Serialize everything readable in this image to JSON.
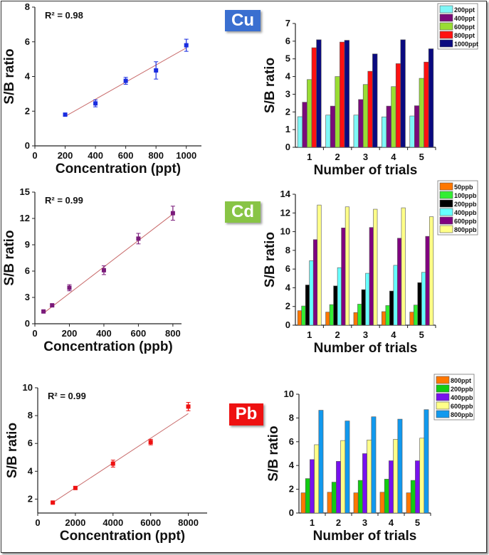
{
  "badges": {
    "cu": "Cu",
    "cd": "Cd",
    "pb": "Pb"
  },
  "chart_data": [
    {
      "id": "cu-linear",
      "type": "scatter",
      "element": "Cu",
      "xlabel": "Concentration (ppt)",
      "ylabel": "S/B ratio",
      "annotation": "R² = 0.98",
      "xlim": [
        0,
        1100
      ],
      "ylim": [
        0,
        8
      ],
      "xticks": [
        0,
        200,
        400,
        600,
        800,
        1000
      ],
      "yticks": [
        0,
        2,
        4,
        6,
        8
      ],
      "x": [
        200,
        400,
        600,
        800,
        1000
      ],
      "y": [
        1.8,
        2.45,
        3.75,
        4.35,
        5.8
      ],
      "error": [
        0.05,
        0.2,
        0.2,
        0.5,
        0.35
      ],
      "fit": {
        "x": [
          200,
          1000
        ],
        "y": [
          1.7,
          5.65
        ]
      },
      "color": "#1a2de0",
      "fit_color": "#c86a6a"
    },
    {
      "id": "cu-bars",
      "type": "bar",
      "element": "Cu",
      "xlabel": "Number of trials",
      "ylabel": "S/B ratio",
      "categories": [
        "1",
        "2",
        "3",
        "4",
        "5"
      ],
      "ylim": [
        0,
        7
      ],
      "yticks": [
        0,
        1,
        2,
        3,
        4,
        5,
        6,
        7
      ],
      "legend_position": "top-right",
      "series": [
        {
          "name": "200ppt",
          "color": "#7ff7f7",
          "values": [
            1.73,
            1.82,
            1.82,
            1.72,
            1.77
          ]
        },
        {
          "name": "400ppt",
          "color": "#7a0a7a",
          "values": [
            2.55,
            2.33,
            2.7,
            2.33,
            2.35
          ]
        },
        {
          "name": "600ppt",
          "color": "#99dd33",
          "values": [
            3.83,
            4.0,
            3.55,
            3.43,
            3.9
          ]
        },
        {
          "name": "800ppt",
          "color": "#ff1111",
          "values": [
            5.63,
            5.95,
            4.3,
            4.73,
            4.82
          ]
        },
        {
          "name": "1000ppt",
          "color": "#0a0a80",
          "values": [
            6.08,
            6.05,
            5.28,
            6.08,
            5.57
          ]
        }
      ]
    },
    {
      "id": "cd-linear",
      "type": "scatter",
      "element": "Cd",
      "xlabel": "Concentration (ppb)",
      "ylabel": "S/B ratio",
      "annotation": "R² = 0.99",
      "xlim": [
        0,
        850
      ],
      "ylim": [
        0,
        15
      ],
      "xticks": [
        0,
        200,
        400,
        600,
        800
      ],
      "yticks": [
        0,
        3,
        6,
        9,
        12,
        15
      ],
      "x": [
        50,
        100,
        200,
        400,
        600,
        800
      ],
      "y": [
        1.4,
        2.1,
        4.1,
        6.1,
        9.7,
        12.6
      ],
      "error": [
        0.1,
        0.15,
        0.35,
        0.5,
        0.6,
        0.8
      ],
      "fit": {
        "x": [
          50,
          800
        ],
        "y": [
          1.2,
          12.5
        ]
      },
      "color": "#7a1a7a",
      "fit_color": "#c86a6a"
    },
    {
      "id": "cd-bars",
      "type": "bar",
      "element": "Cd",
      "xlabel": "Number of trials",
      "ylabel": "S/B ratio",
      "categories": [
        "1",
        "2",
        "3",
        "4",
        "5"
      ],
      "ylim": [
        0,
        14
      ],
      "yticks": [
        0,
        2,
        4,
        6,
        8,
        10,
        12,
        14
      ],
      "legend_position": "top-right",
      "series": [
        {
          "name": "50ppb",
          "color": "#ff7700",
          "values": [
            1.55,
            1.4,
            1.35,
            1.45,
            1.4
          ]
        },
        {
          "name": "100ppb",
          "color": "#33ee33",
          "values": [
            2.05,
            2.2,
            2.25,
            2.1,
            2.15
          ]
        },
        {
          "name": "200ppb",
          "color": "#000000",
          "values": [
            4.3,
            4.2,
            3.8,
            3.65,
            4.55
          ]
        },
        {
          "name": "400ppb",
          "color": "#66ffff",
          "values": [
            6.9,
            6.15,
            5.55,
            6.4,
            5.65
          ]
        },
        {
          "name": "600ppb",
          "color": "#800080",
          "values": [
            9.15,
            10.4,
            10.45,
            9.3,
            9.5
          ]
        },
        {
          "name": "800ppb",
          "color": "#ffff88",
          "values": [
            12.85,
            12.65,
            12.4,
            12.55,
            11.6
          ]
        }
      ]
    },
    {
      "id": "pb-linear",
      "type": "scatter",
      "element": "Pb",
      "xlabel": "Concentration (ppt)",
      "ylabel": "S/B ratio",
      "annotation": "R² = 0.99",
      "xlim": [
        0,
        9000
      ],
      "ylim": [
        1,
        10
      ],
      "xticks": [
        0,
        2000,
        4000,
        6000,
        8000
      ],
      "yticks": [
        2,
        4,
        6,
        8,
        10
      ],
      "x": [
        800,
        2000,
        4000,
        6000,
        8000
      ],
      "y": [
        1.75,
        2.8,
        4.55,
        6.1,
        8.65
      ],
      "error": [
        0.05,
        0.1,
        0.25,
        0.2,
        0.3
      ],
      "fit": {
        "x": [
          800,
          8000
        ],
        "y": [
          1.75,
          8.15
        ]
      },
      "color": "#ee1111",
      "fit_color": "#c86a6a"
    },
    {
      "id": "pb-bars",
      "type": "bar",
      "element": "Pb",
      "xlabel": "Number of trials",
      "ylabel": "S/B ratio",
      "categories": [
        "1",
        "2",
        "3",
        "4",
        "5"
      ],
      "ylim": [
        0,
        10
      ],
      "yticks": [
        0,
        2,
        4,
        6,
        8,
        10
      ],
      "legend_position": "top-right",
      "series": [
        {
          "name": "800ppt",
          "color": "#ff7700",
          "values": [
            1.7,
            1.75,
            1.7,
            1.75,
            1.7
          ]
        },
        {
          "name": "200ppb",
          "color": "#11cc11",
          "values": [
            2.9,
            2.6,
            2.75,
            2.85,
            2.75
          ]
        },
        {
          "name": "400ppb",
          "color": "#7711ee",
          "values": [
            4.5,
            4.35,
            5.0,
            4.4,
            4.4
          ]
        },
        {
          "name": "600ppb",
          "color": "#ffff88",
          "values": [
            5.75,
            6.1,
            6.15,
            6.2,
            6.3
          ]
        },
        {
          "name": "800ppb",
          "color": "#1199ee",
          "values": [
            8.65,
            7.75,
            8.1,
            7.9,
            8.7
          ]
        }
      ]
    }
  ]
}
